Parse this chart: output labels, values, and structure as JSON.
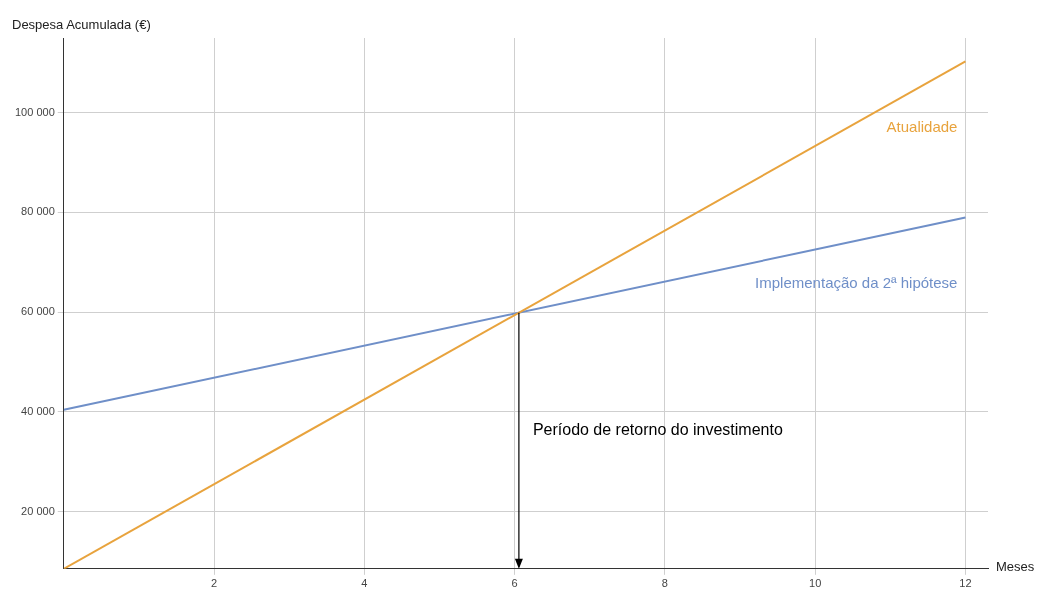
{
  "chart_data": {
    "type": "line",
    "xlabel": "Meses",
    "ylabel": "Despesa Acumulada (€)",
    "series": [
      {
        "name": "Atualidade",
        "color": "#e8a33d",
        "values": [
          8500,
          110300
        ]
      },
      {
        "name": "Implementação da 2ª hipótese",
        "color": "#6f8fc8",
        "values": [
          40400,
          79000
        ]
      }
    ],
    "x": [
      0,
      12
    ],
    "xlim": [
      0,
      12.3
    ],
    "xticks": [
      2,
      4,
      6,
      8,
      10,
      12
    ],
    "ylim": [
      8500,
      115000
    ],
    "yticks": [
      {
        "value": 20000,
        "label": "20 000"
      },
      {
        "value": 40000,
        "label": "40 000"
      },
      {
        "value": 60000,
        "label": "60 000"
      },
      {
        "value": 80000,
        "label": "80 000"
      },
      {
        "value": 100000,
        "label": "100 000"
      }
    ],
    "grid": true,
    "legend": false,
    "marker": "none",
    "line_style": "solid",
    "annotations": [
      "Período de retorno do investimento"
    ]
  }
}
